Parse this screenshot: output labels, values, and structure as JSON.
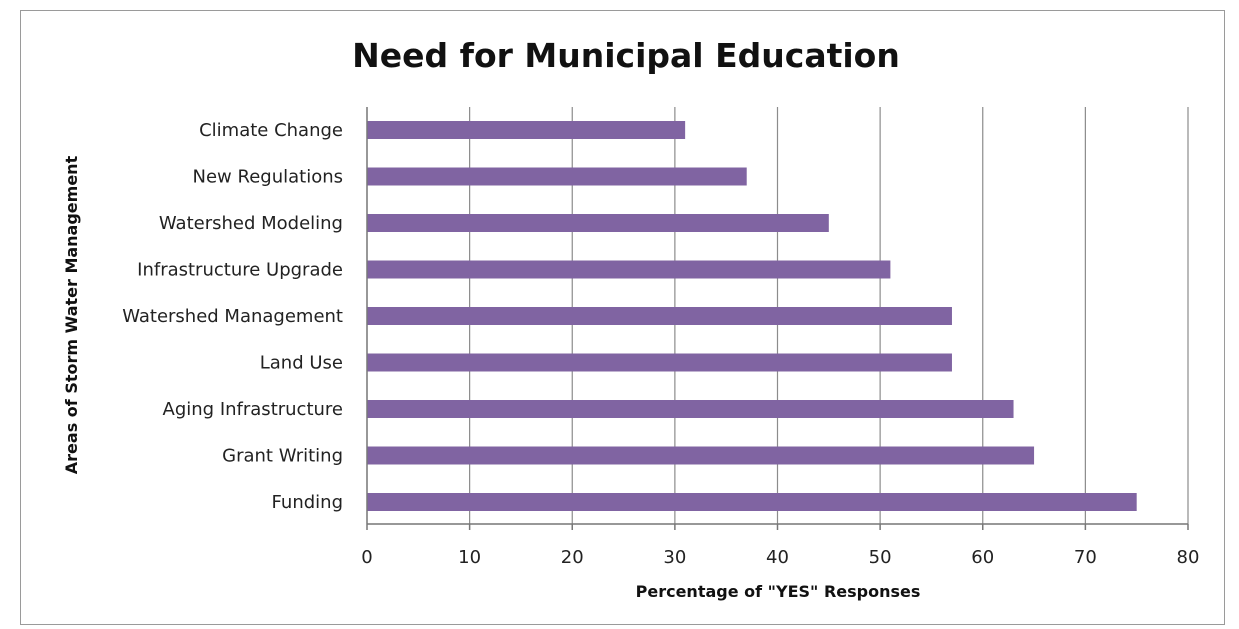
{
  "chart_data": {
    "type": "bar",
    "orientation": "horizontal",
    "title": "Need for Municipal Education",
    "xlabel": "Percentage of \"YES\" Responses",
    "ylabel": "Areas of Storm Water Management",
    "xlim": [
      0,
      80
    ],
    "x_ticks": [
      "0",
      "10",
      "20",
      "30",
      "40",
      "50",
      "60",
      "70",
      "80"
    ],
    "grid": "vertical",
    "legend": "none",
    "color": "#8064a2",
    "categories": [
      "Climate Change",
      "New Regulations",
      "Watershed Modeling",
      "Infrastructure Upgrade",
      "Watershed Management",
      "Land Use",
      "Aging Infrastructure",
      "Grant Writing",
      "Funding"
    ],
    "values": [
      31,
      37,
      45,
      51,
      57,
      57,
      63,
      65,
      75
    ]
  }
}
